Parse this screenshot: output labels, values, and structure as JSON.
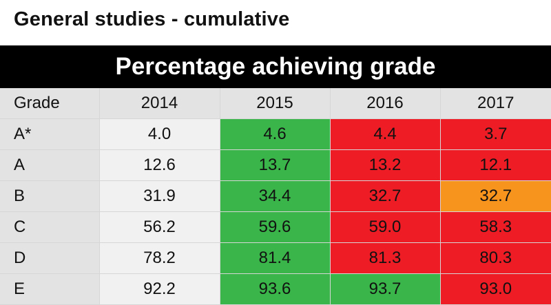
{
  "title": "General studies - cumulative",
  "banner": "Percentage achieving grade",
  "colors": {
    "green": "#3ab54a",
    "red": "#ee1c25",
    "orange": "#f7941e",
    "base": "#f1f1f1",
    "header": "#e3e3e3",
    "banner": "#000000"
  },
  "table": {
    "headers": [
      "Grade",
      "2014",
      "2015",
      "2016",
      "2017"
    ],
    "rows": [
      {
        "grade": "A*",
        "values": [
          "4.0",
          "4.6",
          "4.4",
          "3.7"
        ],
        "status": [
          "base",
          "green",
          "red",
          "red"
        ]
      },
      {
        "grade": "A",
        "values": [
          "12.6",
          "13.7",
          "13.2",
          "12.1"
        ],
        "status": [
          "base",
          "green",
          "red",
          "red"
        ]
      },
      {
        "grade": "B",
        "values": [
          "31.9",
          "34.4",
          "32.7",
          "32.7"
        ],
        "status": [
          "base",
          "green",
          "red",
          "orange"
        ]
      },
      {
        "grade": "C",
        "values": [
          "56.2",
          "59.6",
          "59.0",
          "58.3"
        ],
        "status": [
          "base",
          "green",
          "red",
          "red"
        ]
      },
      {
        "grade": "D",
        "values": [
          "78.2",
          "81.4",
          "81.3",
          "80.3"
        ],
        "status": [
          "base",
          "green",
          "red",
          "red"
        ]
      },
      {
        "grade": "E",
        "values": [
          "92.2",
          "93.6",
          "93.7",
          "93.0"
        ],
        "status": [
          "base",
          "green",
          "green",
          "red"
        ]
      }
    ]
  }
}
